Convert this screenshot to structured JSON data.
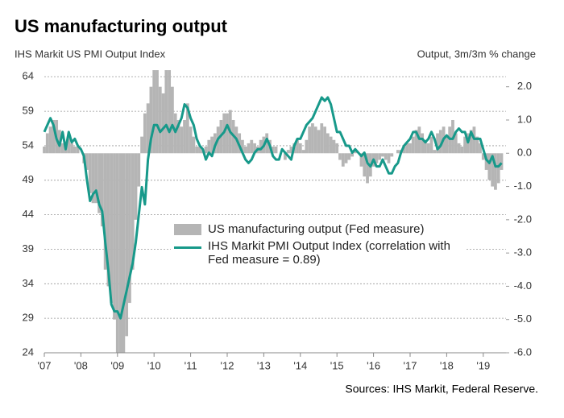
{
  "chart_data": {
    "type": "bar_line",
    "title": "US manufacturing output",
    "y_axis_label": "IHS Markit US PMI Output  Index",
    "y2_axis_label": "Output, 3m/3m % change",
    "source": "Sources: IHS Markit, Federal Reserve.",
    "categories": [
      "'07",
      null,
      null,
      null,
      null,
      null,
      null,
      null,
      null,
      null,
      null,
      null,
      "'08",
      null,
      null,
      null,
      null,
      null,
      null,
      null,
      null,
      null,
      null,
      null,
      "'09",
      null,
      null,
      null,
      null,
      null,
      null,
      null,
      null,
      null,
      null,
      null,
      "'10",
      null,
      null,
      null,
      null,
      null,
      null,
      null,
      null,
      null,
      null,
      null,
      "'11",
      null,
      null,
      null,
      null,
      null,
      null,
      null,
      null,
      null,
      null,
      null,
      "'12",
      null,
      null,
      null,
      null,
      null,
      null,
      null,
      null,
      null,
      null,
      null,
      "'13",
      null,
      null,
      null,
      null,
      null,
      null,
      null,
      null,
      null,
      null,
      null,
      "'14",
      null,
      null,
      null,
      null,
      null,
      null,
      null,
      null,
      null,
      null,
      null,
      "'15",
      null,
      null,
      null,
      null,
      null,
      null,
      null,
      null,
      null,
      null,
      null,
      "'16",
      null,
      null,
      null,
      null,
      null,
      null,
      null,
      null,
      null,
      null,
      null,
      "'17",
      null,
      null,
      null,
      null,
      null,
      null,
      null,
      null,
      null,
      null,
      null,
      "'18",
      null,
      null,
      null,
      null,
      null,
      null,
      null,
      null,
      null,
      null,
      null,
      "'19",
      null,
      null,
      null,
      null,
      null,
      null
    ],
    "series": [
      {
        "name": "US manufacturing output (Fed measure)",
        "type": "bar",
        "axis": "y2",
        "color": "#b5b5b5",
        "values": [
          0.2,
          0.6,
          0.8,
          1.0,
          1.0,
          0.7,
          0.3,
          0.3,
          0.5,
          0.3,
          0.2,
          0.2,
          0,
          -0.3,
          -0.5,
          -1.2,
          -1.5,
          -1.5,
          -1.8,
          -2.2,
          -3.5,
          -4.0,
          -4.5,
          -5.0,
          -6.0,
          -6.0,
          -6.0,
          -5.5,
          -4.5,
          -3.5,
          -2.0,
          -1.0,
          0.5,
          1.2,
          1.5,
          2.0,
          2.5,
          2.5,
          2.0,
          1.8,
          2.5,
          2.5,
          2.0,
          1.2,
          1.0,
          0.8,
          1.0,
          1.5,
          0.8,
          0.5,
          0.2,
          0.2,
          0.1,
          0.2,
          0.4,
          0.5,
          0.6,
          0.8,
          1.0,
          1.2,
          1.2,
          1.3,
          1.0,
          0.8,
          0.6,
          0.4,
          0.2,
          0.3,
          0.4,
          0.3,
          0.2,
          0.4,
          0.5,
          0.6,
          0.4,
          0.2,
          0.2,
          0.0,
          0.0,
          -0.2,
          0.1,
          0.2,
          0.3,
          0.4,
          0.3,
          0.1,
          0.4,
          0.8,
          0.9,
          0.8,
          0.7,
          0.9,
          0.8,
          0.6,
          0.5,
          0.4,
          0.3,
          -0.2,
          -0.4,
          -0.3,
          -0.2,
          -0.1,
          0.1,
          0.0,
          -0.4,
          -0.7,
          -0.9,
          -0.7,
          -0.4,
          -0.3,
          -0.2,
          -0.1,
          -0.2,
          -0.3,
          -0.1,
          0.0,
          0.1,
          0.1,
          0.2,
          0.3,
          0.3,
          0.5,
          0.7,
          0.8,
          0.6,
          0.4,
          0.3,
          0.5,
          0.1,
          0.6,
          0.7,
          0.8,
          0.5,
          0.8,
          1.0,
          0.6,
          0.3,
          0.2,
          0.5,
          0.6,
          0.7,
          0.8,
          0.5,
          0.3,
          -0.2,
          -0.5,
          -0.8,
          -1.0,
          -1.1,
          -0.9,
          -0.5
        ]
      },
      {
        "name": "IHS Markit PMI Output Index (correlation with Fed measure = 0.89)",
        "type": "line",
        "axis": "y",
        "color": "#17998a",
        "values": [
          56,
          57,
          58,
          57,
          55,
          54,
          56,
          53.5,
          56,
          54.5,
          55,
          54,
          53.5,
          52.5,
          49,
          46,
          47,
          47.5,
          45.5,
          44.5,
          40,
          36,
          31,
          30,
          30,
          29,
          31,
          33,
          35,
          37,
          40,
          44,
          48,
          45.5,
          52,
          55,
          57,
          57,
          56,
          56.5,
          57,
          56,
          57,
          56,
          57,
          58,
          60,
          59.5,
          58,
          57,
          55,
          54,
          53.5,
          52,
          53,
          52.5,
          54,
          55,
          55.5,
          56,
          57,
          56,
          55.5,
          55,
          54,
          53,
          52,
          51.5,
          52,
          53,
          53.5,
          53.5,
          54,
          55,
          54,
          52.5,
          52,
          52,
          53.5,
          53,
          52.5,
          52,
          54,
          55,
          55,
          56,
          57,
          57.5,
          58,
          59,
          60,
          61,
          60.5,
          61,
          60,
          58,
          56,
          56,
          55,
          54,
          54,
          53,
          53.5,
          53,
          52.5,
          53,
          51.5,
          51,
          52,
          51,
          51,
          52,
          51,
          50,
          50,
          51,
          51.5,
          53,
          54,
          54.5,
          55,
          56,
          56,
          55,
          55,
          54.5,
          55,
          56,
          55,
          53.5,
          54,
          55,
          55.5,
          55,
          55,
          56,
          56.5,
          56,
          56,
          54.5,
          56,
          55,
          55,
          55,
          53.5,
          52,
          51.5,
          52.5,
          51,
          51,
          51.5
        ]
      }
    ],
    "ylim": [
      24,
      65.2
    ],
    "yticks": [
      24,
      29,
      34,
      39,
      44,
      49,
      54,
      59,
      64
    ],
    "y2lim": [
      -6,
      2.55
    ],
    "y2ticks": [
      {
        "value": -6,
        "label": "-6.0"
      },
      {
        "value": -5,
        "label": "-5.0"
      },
      {
        "value": -4,
        "label": "-4.0"
      },
      {
        "value": -3,
        "label": "-3.0"
      },
      {
        "value": -2,
        "label": "-2.0"
      },
      {
        "value": -1,
        "label": "-1.0"
      },
      {
        "value": 0,
        "label": "0.0"
      },
      {
        "value": 1,
        "label": "1.0"
      },
      {
        "value": 2,
        "label": "2.0"
      }
    ],
    "grid": true
  }
}
